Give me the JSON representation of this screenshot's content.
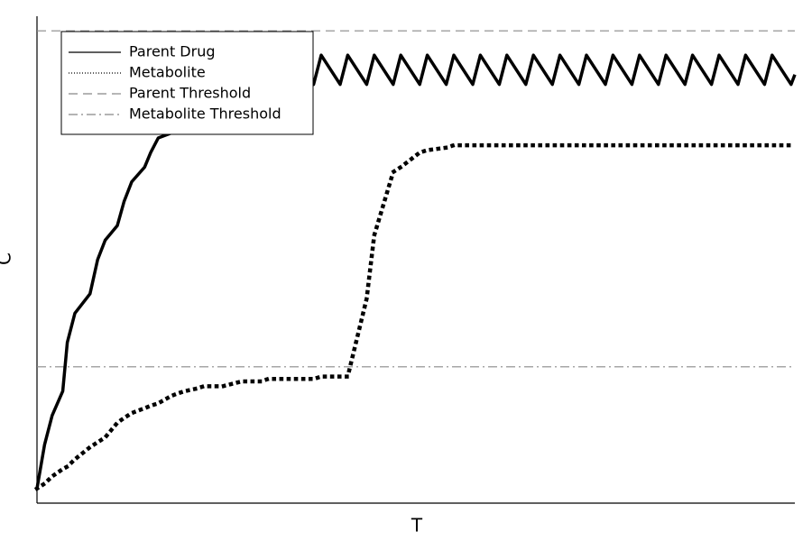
{
  "chart_data": {
    "type": "line",
    "x_label": "T",
    "y_label": "C",
    "xlim": [
      0,
      100
    ],
    "ylim": [
      0,
      1
    ],
    "x": [
      0,
      1,
      2,
      3.4,
      4,
      5,
      7,
      8,
      9,
      10.6,
      11.5,
      12.5,
      14.2,
      15,
      16,
      17.7,
      18.5,
      19.5,
      21,
      22,
      24.5,
      27,
      29.5,
      30.5,
      33,
      34,
      36.5,
      37.5,
      40,
      41,
      43.5,
      44.5,
      47,
      48,
      50.5,
      51.5,
      54,
      55,
      57.5,
      58.5,
      61,
      62,
      64.5,
      65.5,
      68,
      69,
      71.5,
      72.5,
      75,
      76,
      78.5,
      79.5,
      82,
      83,
      85.5,
      86.5,
      89,
      90,
      92.5,
      93.5,
      96,
      97,
      99.5,
      100
    ],
    "series": [
      {
        "name": "Parent Drug",
        "color": "#000000",
        "style": "solid",
        "values": [
          0.03,
          0.12,
          0.18,
          0.23,
          0.33,
          0.39,
          0.43,
          0.5,
          0.54,
          0.57,
          0.62,
          0.66,
          0.69,
          0.72,
          0.75,
          0.76,
          0.8,
          0.83,
          0.84,
          0.87,
          0.86,
          0.91,
          0.86,
          0.92,
          0.86,
          0.92,
          0.86,
          0.92,
          0.86,
          0.92,
          0.86,
          0.92,
          0.86,
          0.92,
          0.86,
          0.92,
          0.86,
          0.92,
          0.86,
          0.92,
          0.86,
          0.92,
          0.86,
          0.92,
          0.86,
          0.92,
          0.86,
          0.92,
          0.86,
          0.92,
          0.86,
          0.92,
          0.86,
          0.92,
          0.86,
          0.92,
          0.86,
          0.92,
          0.86,
          0.92,
          0.86,
          0.92,
          0.86,
          0.88
        ]
      },
      {
        "name": "Metabolite",
        "color": "#000000",
        "style": "dotted",
        "values": [
          0.03,
          0.04,
          0.055,
          0.07,
          0.075,
          0.09,
          0.115,
          0.125,
          0.135,
          0.165,
          0.175,
          0.185,
          0.195,
          0.2,
          0.205,
          0.22,
          0.225,
          0.23,
          0.235,
          0.24,
          0.24,
          0.25,
          0.25,
          0.255,
          0.255,
          0.255,
          0.255,
          0.26,
          0.26,
          0.26,
          0.42,
          0.55,
          0.68,
          0.69,
          0.72,
          0.725,
          0.73,
          0.735,
          0.735,
          0.735,
          0.735,
          0.735,
          0.735,
          0.735,
          0.735,
          0.735,
          0.735,
          0.735,
          0.735,
          0.735,
          0.735,
          0.735,
          0.735,
          0.735,
          0.735,
          0.735,
          0.735,
          0.735,
          0.735,
          0.735,
          0.735,
          0.735,
          0.735,
          0.735
        ]
      }
    ],
    "thresholds": [
      {
        "name": "Parent Threshold",
        "value": 0.97,
        "color": "#888888",
        "style": "dashed"
      },
      {
        "name": "Metabolite Threshold",
        "value": 0.28,
        "color": "#888888",
        "style": "dashdot"
      }
    ],
    "legend": "upper-left"
  }
}
